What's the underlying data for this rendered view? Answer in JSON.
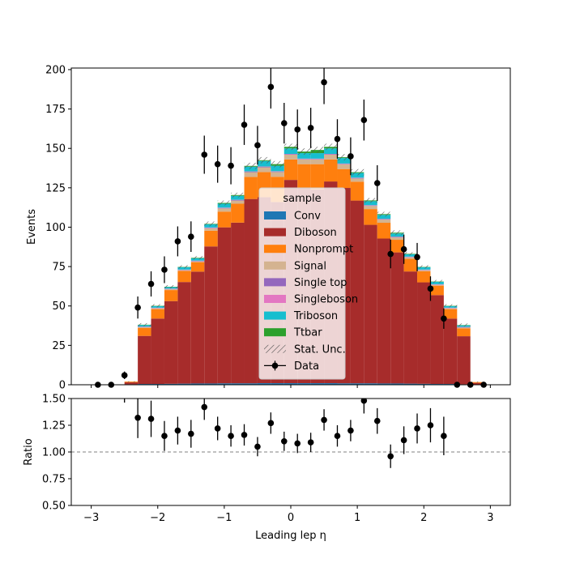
{
  "chart_data": {
    "type": "bar",
    "stacked": true,
    "xlabel": "Leading lep η",
    "ylabel": "Events",
    "ratio_ylabel": "Ratio",
    "xlim": [
      -3.3,
      3.3
    ],
    "ylim": [
      0,
      201
    ],
    "ratio_ylim": [
      0.5,
      1.5
    ],
    "x_ticks": [
      -3,
      -2,
      -1,
      0,
      1,
      2,
      3
    ],
    "x_tick_labels": [
      "−3",
      "−2",
      "−1",
      "0",
      "1",
      "2",
      "3"
    ],
    "y_ticks": [
      0,
      25,
      50,
      75,
      100,
      125,
      150,
      175,
      200
    ],
    "ratio_y_ticks": [
      0.5,
      0.75,
      1.0,
      1.25,
      1.5
    ],
    "ratio_y_tick_labels": [
      "0.50",
      "0.75",
      "1.00",
      "1.25",
      "1.50"
    ],
    "ratio_reference_line": 1.0,
    "grid": false,
    "legend": {
      "title": "sample",
      "placement": "center",
      "entries": [
        "Conv",
        "Diboson",
        "Nonprompt",
        "Signal",
        "Single top",
        "Singleboson",
        "Triboson",
        "Ttbar",
        "Stat. Unc.",
        "Data"
      ]
    },
    "bin_edges": [
      -3.1,
      -2.9,
      -2.7,
      -2.5,
      -2.3,
      -2.1,
      -1.9,
      -1.7,
      -1.5,
      -1.3,
      -1.1,
      -0.9,
      -0.7,
      -0.5,
      -0.3,
      -0.1,
      0.1,
      0.3,
      0.5,
      0.7,
      0.9,
      1.1,
      1.3,
      1.5,
      1.7,
      1.9,
      2.1,
      2.3,
      2.5,
      2.7,
      2.9,
      3.1
    ],
    "series": [
      {
        "name": "Conv",
        "color": "#1f77b4",
        "values": [
          0,
          0,
          0,
          0.3,
          0.5,
          0.5,
          0.6,
          0.7,
          0.8,
          0.8,
          0.9,
          0.9,
          0.9,
          1,
          1,
          1,
          1,
          1,
          1,
          0.9,
          0.9,
          0.9,
          0.8,
          0.8,
          0.7,
          0.6,
          0.5,
          0.5,
          0.3,
          0,
          0
        ]
      },
      {
        "name": "Diboson",
        "color": "#a72c2b",
        "values": [
          0,
          0,
          0,
          1.2,
          30.5,
          41.5,
          52.5,
          64.5,
          71,
          87,
          99,
          102,
          117,
          118,
          115,
          129,
          124,
          123,
          128,
          124,
          116,
          100.6,
          92,
          83.2,
          71.2,
          64.4,
          56.4,
          41.5,
          30.5,
          1.2,
          0
        ]
      },
      {
        "name": "Nonprompt",
        "color": "#ff7f0e",
        "values": [
          0,
          0,
          0,
          0.5,
          5,
          6,
          7,
          7,
          6,
          10,
          10,
          12,
          14,
          16,
          16,
          13,
          15,
          16,
          14,
          12,
          12,
          10,
          10,
          8,
          8,
          7,
          6,
          6,
          5,
          0.5,
          0
        ]
      },
      {
        "name": "Signal",
        "color": "#d4b390",
        "values": [
          0,
          0,
          0,
          0,
          0.5,
          0.5,
          0.5,
          0.5,
          0.5,
          1.5,
          2,
          2,
          3,
          3,
          3,
          3,
          3,
          3,
          3,
          3,
          2,
          2,
          2,
          1.5,
          1,
          0.7,
          0.5,
          0.5,
          0.5,
          0,
          0
        ]
      },
      {
        "name": "Single top",
        "color": "#9467bd",
        "values": [
          0,
          0,
          0,
          0,
          0.2,
          0.2,
          0.2,
          0.2,
          0.3,
          0.3,
          0.3,
          0.3,
          0.3,
          0.3,
          0.3,
          0.3,
          0.3,
          0.3,
          0.3,
          0.3,
          0.3,
          0.3,
          0.3,
          0.3,
          0.2,
          0.2,
          0.2,
          0.2,
          0.2,
          0,
          0
        ]
      },
      {
        "name": "Singleboson",
        "color": "#e377c2",
        "values": [
          0,
          0,
          0,
          0,
          0.2,
          0.2,
          0.2,
          0.2,
          0.2,
          0.2,
          0.2,
          0.2,
          0.2,
          0.2,
          0.2,
          0.2,
          0.2,
          0.2,
          0.2,
          0.2,
          0.2,
          0.2,
          0.2,
          0.2,
          0.2,
          0.2,
          0.2,
          0.2,
          0.2,
          0,
          0
        ]
      },
      {
        "name": "Triboson",
        "color": "#17becf",
        "values": [
          0,
          0,
          0,
          0,
          1,
          1,
          1,
          1.5,
          1.5,
          2,
          2.5,
          2.5,
          3,
          3.5,
          3.5,
          3.5,
          3.5,
          3.5,
          3.5,
          3.5,
          3,
          2.5,
          2.5,
          2,
          1.5,
          1.5,
          1.5,
          1,
          1,
          0,
          0
        ]
      },
      {
        "name": "Ttbar",
        "color": "#2ca02c",
        "values": [
          0,
          0,
          0,
          0,
          0.2,
          0.2,
          0.2,
          0.2,
          0.3,
          0.3,
          0.5,
          0.5,
          0.5,
          0.5,
          1,
          1,
          1,
          2,
          1,
          0.5,
          0.5,
          0.5,
          0.5,
          0.5,
          0.3,
          0.2,
          0.2,
          0.2,
          0.2,
          0,
          0
        ]
      }
    ],
    "stat_unc": [
      0,
      0,
      0,
      0.3,
      1,
      1,
      1,
      1,
      1,
      1.5,
      1.5,
      1.5,
      2,
      2,
      2,
      2,
      2,
      2,
      2,
      2,
      2,
      1.5,
      1.5,
      1.5,
      1,
      1,
      1,
      1,
      1,
      0.3,
      0
    ],
    "data": {
      "name": "Data",
      "x": [
        -2.9,
        -2.7,
        -2.5,
        -2.3,
        -2.1,
        -1.9,
        -1.7,
        -1.5,
        -1.3,
        -1.1,
        -0.9,
        -0.7,
        -0.5,
        -0.3,
        -0.1,
        0.1,
        0.3,
        0.5,
        0.7,
        0.9,
        1.1,
        1.3,
        1.5,
        1.7,
        1.9,
        2.1,
        2.3,
        2.5,
        2.7,
        2.9
      ],
      "y": [
        0,
        0,
        6,
        49,
        64,
        73,
        91,
        94,
        146,
        140,
        139,
        165,
        152,
        189,
        166,
        162,
        163,
        192,
        156,
        145,
        168,
        128,
        83,
        86,
        81,
        61,
        42,
        0,
        0,
        0
      ],
      "yerr": [
        0,
        0,
        2.4,
        7,
        8,
        8.5,
        9.5,
        9.7,
        12.1,
        11.8,
        11.8,
        12.8,
        12.3,
        13.7,
        12.9,
        12.7,
        12.8,
        13.9,
        12.5,
        12,
        13,
        11.3,
        9.1,
        9.3,
        9,
        7.8,
        6.5,
        0,
        0,
        0
      ]
    },
    "ratio": {
      "x": [
        -2.3,
        -2.1,
        -1.9,
        -1.7,
        -1.5,
        -1.3,
        -1.1,
        -0.9,
        -0.7,
        -0.5,
        -0.3,
        -0.1,
        0.1,
        0.3,
        0.5,
        0.7,
        0.9,
        1.1,
        1.3,
        1.5,
        1.7,
        1.9,
        2.1,
        2.3
      ],
      "y": [
        1.32,
        1.31,
        1.15,
        1.2,
        1.17,
        1.42,
        1.22,
        1.15,
        1.16,
        1.05,
        1.27,
        1.1,
        1.08,
        1.09,
        1.3,
        1.15,
        1.2,
        1.48,
        1.29,
        0.96,
        1.11,
        1.22,
        1.25,
        1.15
      ],
      "yerr": [
        0.19,
        0.17,
        0.14,
        0.13,
        0.13,
        0.12,
        0.11,
        0.1,
        0.1,
        0.09,
        0.1,
        0.09,
        0.09,
        0.09,
        0.1,
        0.1,
        0.1,
        0.12,
        0.12,
        0.11,
        0.13,
        0.14,
        0.16,
        0.18
      ],
      "partial_marker": {
        "x": -2.5,
        "y": 1.5
      }
    }
  }
}
